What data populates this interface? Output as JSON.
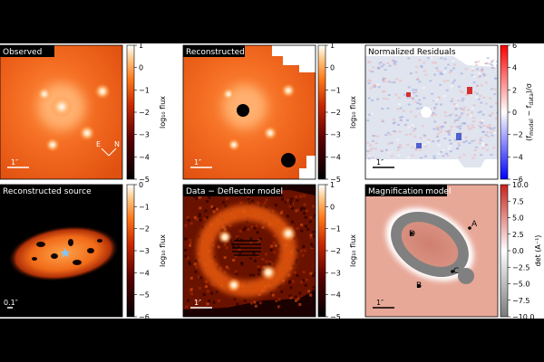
{
  "figure": {
    "background_band_color": "#000000",
    "figure_color": "#ffffff"
  },
  "chart_data": [
    {
      "type": "heatmap",
      "title": "Observed",
      "colormap": "orange-hot",
      "colorbar": {
        "label": "log₁₀ flux",
        "range": [
          -5,
          1
        ],
        "ticks": [
          1,
          0,
          -1,
          -2,
          -3,
          -4,
          -5
        ],
        "tick_labels": [
          "1",
          "0",
          "−1",
          "−2",
          "−3",
          "−4",
          "−5"
        ]
      },
      "scale_bar": "1″",
      "compass": {
        "east": "E",
        "north": "N"
      }
    },
    {
      "type": "heatmap",
      "title": "Reconstructed",
      "colormap": "orange-hot",
      "colorbar": {
        "label": "log₁₀ flux",
        "range": [
          -5,
          1
        ],
        "ticks": [
          1,
          0,
          -1,
          -2,
          -3,
          -4,
          -5
        ],
        "tick_labels": [
          "1",
          "0",
          "−1",
          "−2",
          "−3",
          "−4",
          "−5"
        ]
      },
      "scale_bar": "1″"
    },
    {
      "type": "heatmap",
      "title": "Normalized Residuals",
      "colormap": "bwr",
      "colorbar": {
        "label": "(f_model − f_data)/σ",
        "label_main": "(f",
        "label_sub1": "model",
        "label_mid": " − f",
        "label_sub2": "data",
        "label_end": ")/σ",
        "range": [
          -6,
          6
        ],
        "ticks": [
          6,
          4,
          2,
          0,
          -2,
          -4,
          -6
        ],
        "tick_labels": [
          "6",
          "4",
          "2",
          "0",
          "−2",
          "−4",
          "−6"
        ]
      },
      "scale_bar": "1″"
    },
    {
      "type": "heatmap",
      "title": "Reconstructed source",
      "colormap": "orange-hot",
      "colorbar": {
        "label": "log₁₀ flux",
        "range": [
          -6,
          0
        ],
        "ticks": [
          0,
          -1,
          -2,
          -3,
          -4,
          -5,
          -6
        ],
        "tick_labels": [
          "0",
          "−1",
          "−2",
          "−3",
          "−4",
          "−5",
          "−6"
        ]
      },
      "scale_bar": "0.1″"
    },
    {
      "type": "heatmap",
      "title": "Data − Deflector model",
      "colormap": "orange-hot",
      "colorbar": {
        "label": "log₁₀ flux",
        "range": [
          -5,
          1
        ],
        "ticks": [
          1,
          0,
          -1,
          -2,
          -3,
          -4,
          -5
        ],
        "tick_labels": [
          "1",
          "0",
          "−1",
          "−2",
          "−3",
          "−4",
          "−5"
        ]
      },
      "scale_bar": "1″"
    },
    {
      "type": "heatmap",
      "title": "Magnification model",
      "colormap": "red-white-grey",
      "colorbar": {
        "label": "det (A⁻¹)",
        "range": [
          -10,
          10
        ],
        "ticks": [
          10,
          7.5,
          5,
          2.5,
          0,
          -2.5,
          -5,
          -7.5,
          -10
        ],
        "tick_labels": [
          "10.0",
          "7.5",
          "5.0",
          "2.5",
          "0.0",
          "−2.5",
          "−5.0",
          "−7.5",
          "−10.0"
        ]
      },
      "scale_bar": "1″",
      "image_labels": [
        "A",
        "B",
        "C",
        "D"
      ]
    }
  ]
}
